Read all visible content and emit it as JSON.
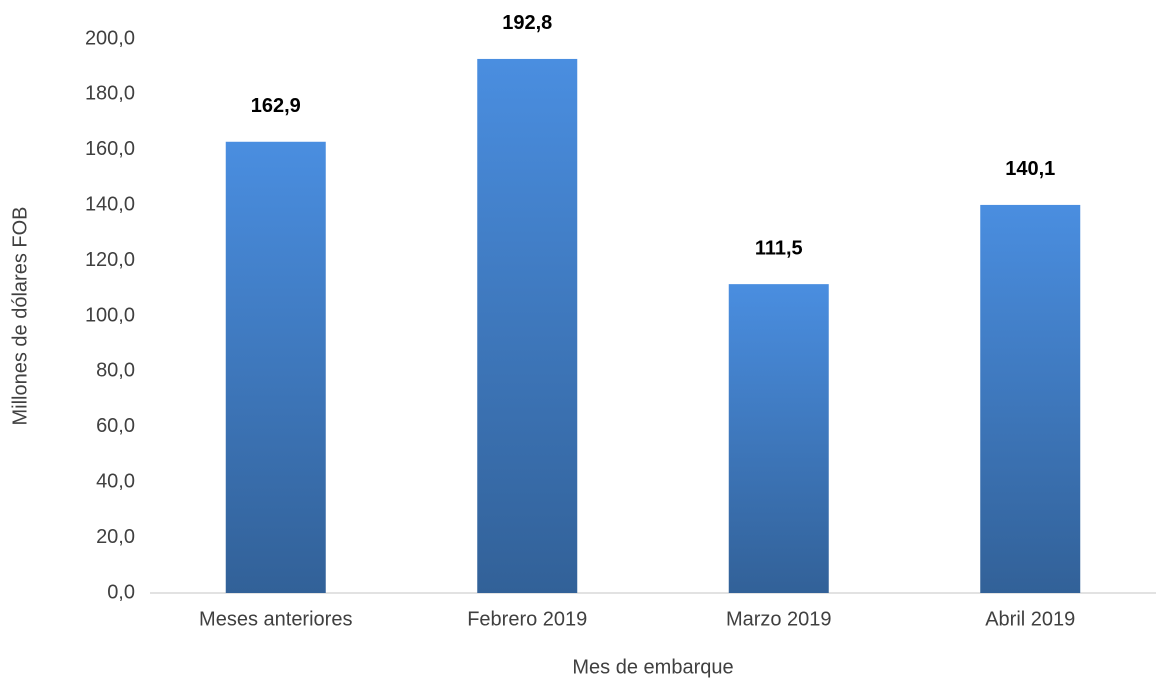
{
  "chart_data": {
    "type": "bar",
    "x_label": "Mes de embarque",
    "y_label": "Millones de dólares FOB",
    "categories": [
      "Meses anteriores",
      "Febrero 2019",
      "Marzo 2019",
      "Abril 2019"
    ],
    "values": [
      162.9,
      192.8,
      111.5,
      140.1
    ],
    "value_labels": [
      "162,9",
      "192,8",
      "111,5",
      "140,1"
    ],
    "color": "#4a8ee0",
    "ylim": [
      0,
      200
    ],
    "yticks": [
      {
        "value": 0,
        "label": "0,0"
      },
      {
        "value": 20,
        "label": "20,0"
      },
      {
        "value": 40,
        "label": "40,0"
      },
      {
        "value": 60,
        "label": "60,0"
      },
      {
        "value": 80,
        "label": "80,0"
      },
      {
        "value": 100,
        "label": "100,0"
      },
      {
        "value": 120,
        "label": "120,0"
      },
      {
        "value": 140,
        "label": "140,0"
      },
      {
        "value": 160,
        "label": "160,0"
      },
      {
        "value": 180,
        "label": "180,0"
      },
      {
        "value": 200,
        "label": "200,0"
      }
    ],
    "grid": false
  }
}
